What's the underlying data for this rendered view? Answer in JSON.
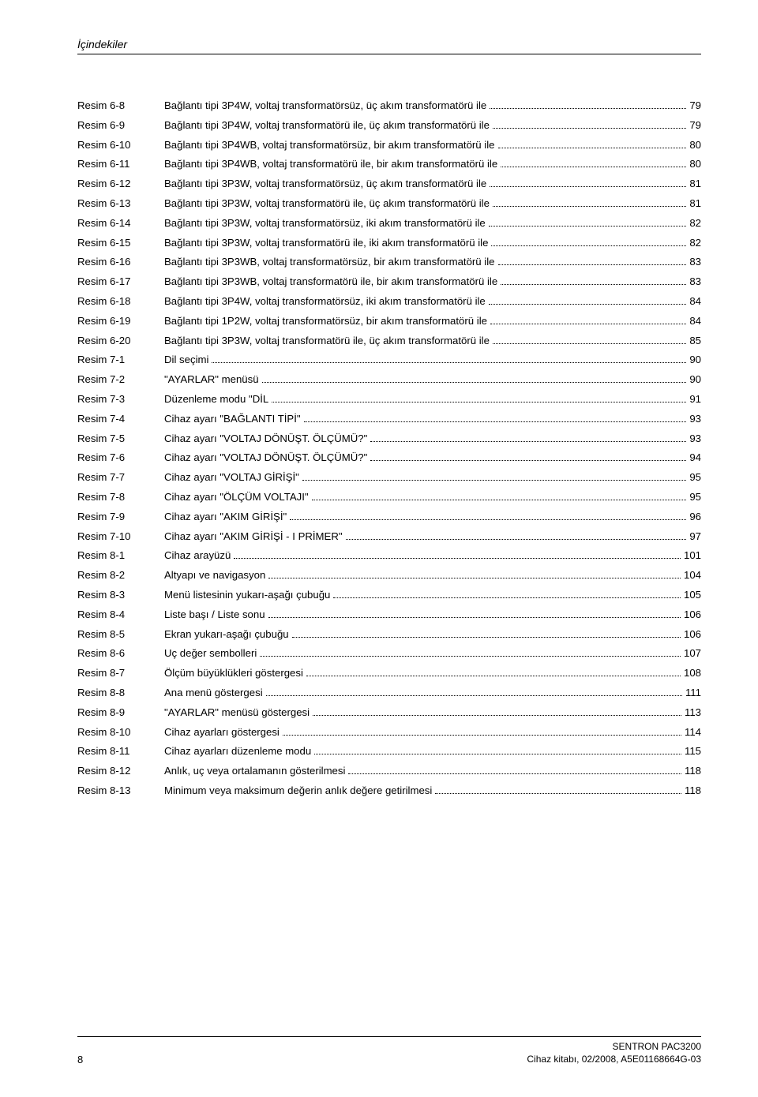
{
  "header": {
    "title": "İçindekiler"
  },
  "toc": [
    {
      "label": "Resim 6-8",
      "title": "Bağlantı tipi 3P4W, voltaj transformatörsüz, üç akım transformatörü ile",
      "page": "79"
    },
    {
      "label": "Resim 6-9",
      "title": "Bağlantı tipi 3P4W, voltaj transformatörü ile, üç akım transformatörü ile",
      "page": "79"
    },
    {
      "label": "Resim 6-10",
      "title": "Bağlantı tipi 3P4WB, voltaj transformatörsüz, bir akım transformatörü ile",
      "page": "80"
    },
    {
      "label": "Resim 6-11",
      "title": "Bağlantı tipi 3P4WB, voltaj transformatörü ile, bir akım transformatörü ile",
      "page": "80"
    },
    {
      "label": "Resim 6-12",
      "title": "Bağlantı tipi 3P3W, voltaj transformatörsüz, üç akım transformatörü ile",
      "page": "81"
    },
    {
      "label": "Resim 6-13",
      "title": "Bağlantı tipi 3P3W, voltaj transformatörü ile, üç akım transformatörü ile",
      "page": "81"
    },
    {
      "label": "Resim 6-14",
      "title": "Bağlantı tipi 3P3W, voltaj transformatörsüz, iki akım transformatörü ile",
      "page": "82"
    },
    {
      "label": "Resim 6-15",
      "title": "Bağlantı tipi 3P3W, voltaj transformatörü ile, iki akım transformatörü ile",
      "page": "82"
    },
    {
      "label": "Resim 6-16",
      "title": "Bağlantı tipi 3P3WB, voltaj transformatörsüz, bir akım transformatörü ile",
      "page": "83"
    },
    {
      "label": "Resim 6-17",
      "title": "Bağlantı tipi 3P3WB, voltaj transformatörü ile, bir akım transformatörü ile",
      "page": "83"
    },
    {
      "label": "Resim 6-18",
      "title": "Bağlantı tipi 3P4W, voltaj transformatörsüz, iki akım transformatörü ile",
      "page": "84"
    },
    {
      "label": "Resim 6-19",
      "title": "Bağlantı tipi 1P2W, voltaj transformatörsüz, bir akım transformatörü ile",
      "page": "84"
    },
    {
      "label": "Resim 6-20",
      "title": "Bağlantı tipi 3P3W, voltaj transformatörü ile, üç akım transformatörü ile",
      "page": "85"
    },
    {
      "label": "Resim 7-1",
      "title": "Dil seçimi",
      "page": "90"
    },
    {
      "label": "Resim 7-2",
      "title": "\"AYARLAR\" menüsü",
      "page": "90"
    },
    {
      "label": "Resim 7-3",
      "title": "Düzenleme modu \"DİL",
      "page": "91"
    },
    {
      "label": "Resim 7-4",
      "title": "Cihaz ayarı \"BAĞLANTI TİPİ\"",
      "page": "93"
    },
    {
      "label": "Resim 7-5",
      "title": "Cihaz ayarı \"VOLTAJ DÖNÜŞT. ÖLÇÜMÜ?\"",
      "page": "93"
    },
    {
      "label": "Resim 7-6",
      "title": "Cihaz ayarı \"VOLTAJ DÖNÜŞT. ÖLÇÜMÜ?\"",
      "page": "94"
    },
    {
      "label": "Resim 7-7",
      "title": "Cihaz ayarı \"VOLTAJ GİRİŞİ\"",
      "page": "95"
    },
    {
      "label": "Resim 7-8",
      "title": "Cihaz ayarı \"ÖLÇÜM VOLTAJI\"",
      "page": "95"
    },
    {
      "label": "Resim 7-9",
      "title": "Cihaz ayarı \"AKIM GİRİŞİ\"",
      "page": "96"
    },
    {
      "label": "Resim 7-10",
      "title": "Cihaz ayarı \"AKIM GİRİŞİ - I PRİMER\"",
      "page": "97"
    },
    {
      "label": "Resim 8-1",
      "title": "Cihaz arayüzü",
      "page": "101"
    },
    {
      "label": "Resim 8-2",
      "title": "Altyapı ve navigasyon",
      "page": "104"
    },
    {
      "label": "Resim 8-3",
      "title": "Menü listesinin yukarı-aşağı çubuğu",
      "page": "105"
    },
    {
      "label": "Resim 8-4",
      "title": "Liste başı / Liste sonu",
      "page": "106"
    },
    {
      "label": "Resim 8-5",
      "title": "Ekran yukarı-aşağı çubuğu",
      "page": "106"
    },
    {
      "label": "Resim 8-6",
      "title": "Uç değer sembolleri",
      "page": "107"
    },
    {
      "label": "Resim 8-7",
      "title": "Ölçüm büyüklükleri göstergesi",
      "page": "108"
    },
    {
      "label": "Resim 8-8",
      "title": "Ana menü göstergesi",
      "page": "111"
    },
    {
      "label": "Resim 8-9",
      "title": "\"AYARLAR\" menüsü göstergesi",
      "page": "113"
    },
    {
      "label": "Resim 8-10",
      "title": "Cihaz ayarları göstergesi",
      "page": "114"
    },
    {
      "label": "Resim 8-11",
      "title": "Cihaz ayarları düzenleme modu",
      "page": "115"
    },
    {
      "label": "Resim 8-12",
      "title": "Anlık, uç veya ortalamanın gösterilmesi",
      "page": "118"
    },
    {
      "label": "Resim 8-13",
      "title": "Minimum veya maksimum değerin anlık değere getirilmesi",
      "page": "118"
    }
  ],
  "footer": {
    "page_number": "8",
    "line1": "SENTRON PAC3200",
    "line2": "Cihaz kitabı, 02/2008, A5E01168664G-03"
  }
}
